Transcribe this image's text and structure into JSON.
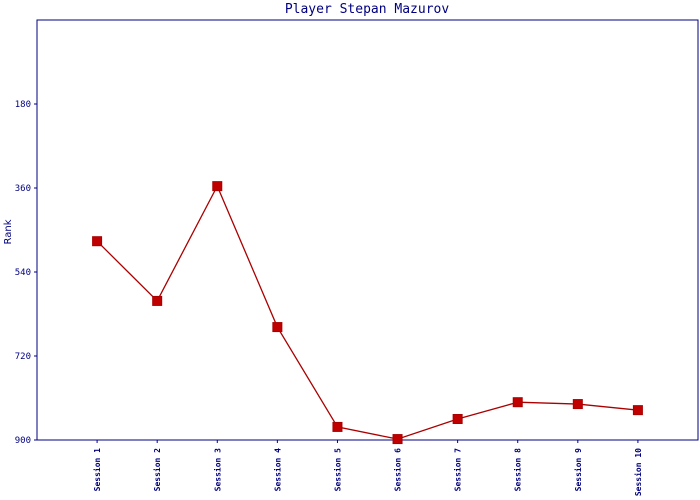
{
  "chart_data": {
    "type": "line",
    "title": "Player Stepan Mazurov",
    "y_label": "Rank",
    "categories": [
      "Session 1",
      "Session 2",
      "Session 3",
      "Session 4",
      "Session 5",
      "Session 6",
      "Session 7",
      "Session 8",
      "Session 9",
      "Session 10"
    ],
    "series": [
      {
        "name": "Rank",
        "color": "#aa0000",
        "values": [
          474,
          602,
          356,
          658,
          872,
          898,
          855,
          819,
          823,
          836
        ]
      }
    ],
    "ylim": [
      900,
      0
    ],
    "yticks": [
      180,
      360,
      540,
      720,
      900
    ],
    "grid": false
  }
}
